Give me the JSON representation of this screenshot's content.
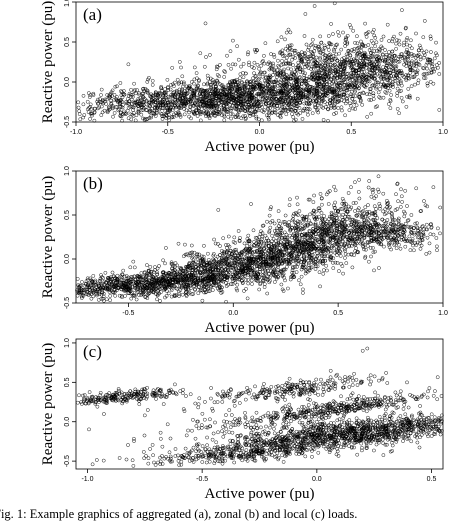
{
  "caption": "Fig. 1: Example graphics of aggregated (a), zonal (b) and local (c) loads.",
  "chart_data": [
    {
      "type": "scatter",
      "panel_label": "(a)",
      "xlabel": "Active power (pu)",
      "ylabel": "Reactive power (pu)",
      "xlim": [
        -1.0,
        1.0
      ],
      "ylim": [
        -0.5,
        1.0
      ],
      "x_ticks": [
        -1.0,
        -0.5,
        0.0,
        0.5,
        1.0
      ],
      "x_tick_labels": [
        "-1.0",
        "-0.5",
        "0.0",
        "0.5",
        "1.0"
      ],
      "y_ticks": [
        -0.5,
        0.0,
        0.5,
        1.0
      ],
      "y_tick_labels": [
        "-0.5",
        "0.0",
        "0.5",
        "1.0"
      ],
      "grid": false,
      "marker": "open-circle",
      "point_clusters": [
        {
          "center": [
            -0.2,
            -0.22
          ],
          "spread": [
            0.35,
            0.13
          ],
          "tilt": 0.15,
          "count": 1300
        },
        {
          "center": [
            0.3,
            0.05
          ],
          "spread": [
            0.3,
            0.25
          ],
          "tilt": 0.35,
          "count": 1300
        },
        {
          "center": [
            0.65,
            0.15
          ],
          "spread": [
            0.18,
            0.18
          ],
          "tilt": 0.2,
          "count": 300
        },
        {
          "center": [
            -0.7,
            -0.25
          ],
          "spread": [
            0.15,
            0.08
          ],
          "tilt": 0.1,
          "count": 150
        }
      ],
      "points_sample": [
        [
          -0.92,
          -0.28
        ],
        [
          -0.88,
          -0.22
        ],
        [
          -0.8,
          -0.3
        ],
        [
          -0.5,
          -0.35
        ],
        [
          -0.3,
          -0.25
        ],
        [
          0.0,
          -0.15
        ],
        [
          0.2,
          0.1
        ],
        [
          0.25,
          0.85
        ],
        [
          0.3,
          0.95
        ],
        [
          0.4,
          0.6
        ],
        [
          0.6,
          0.4
        ],
        [
          0.8,
          0.2
        ],
        [
          0.9,
          0.1
        ],
        [
          0.98,
          0.1
        ],
        [
          -0.6,
          -0.45
        ]
      ]
    },
    {
      "type": "scatter",
      "panel_label": "(b)",
      "xlabel": "Active power (pu)",
      "ylabel": "Reactive power (pu)",
      "xlim": [
        -0.75,
        1.0
      ],
      "ylim": [
        -0.5,
        1.0
      ],
      "x_ticks": [
        -0.5,
        0.0,
        0.5,
        1.0
      ],
      "x_tick_labels": [
        "-0.5",
        "0.0",
        "0.5",
        "1.0"
      ],
      "y_ticks": [
        -0.5,
        0.0,
        0.5,
        1.0
      ],
      "y_tick_labels": [
        "-0.5",
        "0.0",
        "0.5",
        "1.0"
      ],
      "grid": false,
      "marker": "open-circle",
      "point_clusters": [
        {
          "center": [
            -0.4,
            -0.28
          ],
          "spread": [
            0.25,
            0.07
          ],
          "tilt": 0.2,
          "count": 900
        },
        {
          "center": [
            0.05,
            -0.05
          ],
          "spread": [
            0.25,
            0.12
          ],
          "tilt": 0.45,
          "count": 1000
        },
        {
          "center": [
            0.4,
            0.25
          ],
          "spread": [
            0.2,
            0.2
          ],
          "tilt": 0.7,
          "count": 900
        },
        {
          "center": [
            0.7,
            0.3
          ],
          "spread": [
            0.15,
            0.08
          ],
          "tilt": -0.2,
          "count": 350
        }
      ],
      "points_sample": [
        [
          -0.7,
          -0.35
        ],
        [
          -0.6,
          -0.3
        ],
        [
          -0.2,
          -0.2
        ],
        [
          0.1,
          0.0
        ],
        [
          0.3,
          0.2
        ],
        [
          0.5,
          0.55
        ],
        [
          0.6,
          0.9
        ],
        [
          0.65,
          1.0
        ],
        [
          0.7,
          0.6
        ],
        [
          0.85,
          0.3
        ],
        [
          0.9,
          0.22
        ],
        [
          0.75,
          0.4
        ],
        [
          0.55,
          0.75
        ],
        [
          -0.45,
          -0.2
        ],
        [
          0.0,
          -0.25
        ]
      ]
    },
    {
      "type": "scatter",
      "panel_label": "(c)",
      "xlabel": "Active power (pu)",
      "ylabel": "Reactive power (pu)",
      "xlim": [
        -1.05,
        0.55
      ],
      "ylim": [
        -0.6,
        1.05
      ],
      "x_ticks": [
        -1.0,
        -0.5,
        0.0,
        0.5
      ],
      "x_tick_labels": [
        "-1.0",
        "-0.5",
        "0.0",
        "0.5"
      ],
      "y_ticks": [
        -0.5,
        0.0,
        0.5,
        1.0
      ],
      "y_tick_labels": [
        "-0.5",
        "0.0",
        "0.5",
        "1.0"
      ],
      "grid": false,
      "marker": "open-circle",
      "point_clusters": [
        {
          "center": [
            -0.85,
            0.32
          ],
          "spread": [
            0.12,
            0.04
          ],
          "tilt": 0.25,
          "count": 220
        },
        {
          "center": [
            -0.08,
            0.42
          ],
          "spread": [
            0.2,
            0.05
          ],
          "tilt": 0.35,
          "count": 220
        },
        {
          "center": [
            0.05,
            0.15
          ],
          "spread": [
            0.22,
            0.05
          ],
          "tilt": 0.4,
          "count": 350
        },
        {
          "center": [
            0.15,
            -0.15
          ],
          "spread": [
            0.28,
            0.09
          ],
          "tilt": 0.3,
          "count": 1200
        },
        {
          "center": [
            -0.35,
            -0.4
          ],
          "spread": [
            0.25,
            0.05
          ],
          "tilt": 0.2,
          "count": 300
        },
        {
          "center": [
            -0.25,
            0.05
          ],
          "spread": [
            0.3,
            0.2
          ],
          "tilt": 0.4,
          "count": 120
        }
      ],
      "points_sample": [
        [
          -1.0,
          0.3
        ],
        [
          -0.95,
          0.25
        ],
        [
          -0.55,
          0.35
        ],
        [
          -0.75,
          0.08
        ],
        [
          -0.15,
          0.38
        ],
        [
          0.1,
          0.55
        ],
        [
          0.2,
          0.9
        ],
        [
          0.22,
          0.93
        ],
        [
          0.4,
          0.18
        ],
        [
          0.45,
          0.2
        ],
        [
          -0.6,
          -0.55
        ],
        [
          -0.3,
          -0.45
        ],
        [
          0.0,
          -0.3
        ],
        [
          -0.45,
          -0.15
        ],
        [
          0.3,
          0.1
        ]
      ]
    }
  ]
}
